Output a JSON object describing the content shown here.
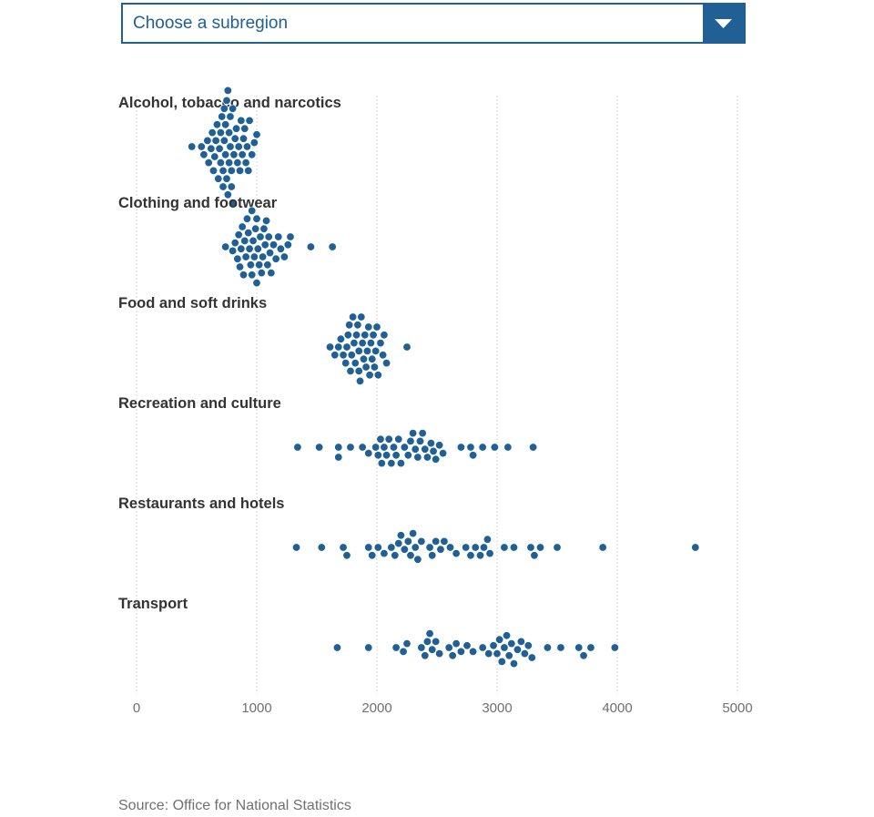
{
  "dropdown": {
    "placeholder": "Choose a subregion",
    "icon": "chevron-down-icon"
  },
  "colors": {
    "accent": "#206095",
    "dot": "#206095",
    "label": "#333333",
    "axis_text": "#707070",
    "grid": "#d9d9d9"
  },
  "source": "Source: Office for National Statistics",
  "chart_data": {
    "type": "scatter",
    "subtype": "beeswarm",
    "title": "",
    "xlabel": "",
    "ylabel": "",
    "xlim": [
      0,
      5000
    ],
    "xticks": [
      0,
      1000,
      2000,
      3000,
      4000,
      5000
    ],
    "grid": "vertical dotted",
    "series": [
      {
        "name": "Alcohol, tobacco and narcotics",
        "values": [
          460,
          540,
          560,
          590,
          600,
          620,
          630,
          640,
          650,
          660,
          670,
          680,
          690,
          700,
          700,
          710,
          720,
          720,
          730,
          730,
          740,
          740,
          750,
          750,
          760,
          760,
          770,
          770,
          780,
          780,
          790,
          790,
          800,
          800,
          810,
          820,
          830,
          840,
          850,
          860,
          870,
          880,
          890,
          900,
          910,
          920,
          930,
          940,
          960,
          980,
          1000
        ]
      },
      {
        "name": "Clothing and footwear",
        "values": [
          740,
          800,
          820,
          840,
          850,
          860,
          870,
          880,
          890,
          900,
          910,
          920,
          930,
          940,
          950,
          960,
          960,
          970,
          980,
          990,
          1000,
          1000,
          1010,
          1020,
          1030,
          1040,
          1050,
          1060,
          1070,
          1080,
          1090,
          1100,
          1110,
          1120,
          1140,
          1160,
          1180,
          1200,
          1230,
          1260,
          1280,
          1450,
          1630
        ]
      },
      {
        "name": "Food and soft drinks",
        "values": [
          1610,
          1650,
          1680,
          1700,
          1720,
          1740,
          1750,
          1760,
          1770,
          1780,
          1790,
          1800,
          1810,
          1820,
          1830,
          1840,
          1850,
          1850,
          1860,
          1870,
          1880,
          1890,
          1900,
          1910,
          1920,
          1930,
          1940,
          1950,
          1960,
          1970,
          1980,
          1990,
          2000,
          2010,
          2030,
          2050,
          2060,
          2080,
          2250
        ]
      },
      {
        "name": "Recreation and culture",
        "values": [
          1340,
          1520,
          1680,
          1680,
          1780,
          1880,
          1930,
          1990,
          2010,
          2030,
          2040,
          2060,
          2080,
          2100,
          2120,
          2140,
          2160,
          2180,
          2200,
          2230,
          2260,
          2280,
          2300,
          2320,
          2340,
          2360,
          2380,
          2400,
          2420,
          2450,
          2470,
          2490,
          2520,
          2550,
          2700,
          2780,
          2800,
          2880,
          2980,
          3090,
          3300
        ]
      },
      {
        "name": "Restaurants and hotels",
        "values": [
          1330,
          1540,
          1720,
          1750,
          1930,
          1960,
          2010,
          2060,
          2120,
          2150,
          2180,
          2200,
          2230,
          2260,
          2280,
          2300,
          2320,
          2340,
          2370,
          2440,
          2460,
          2490,
          2530,
          2560,
          2610,
          2660,
          2740,
          2780,
          2820,
          2860,
          2890,
          2920,
          2940,
          3060,
          3140,
          3280,
          3310,
          3360,
          3500,
          3880,
          4650
        ]
      },
      {
        "name": "Transport",
        "values": [
          1670,
          1930,
          2160,
          2220,
          2250,
          2370,
          2400,
          2420,
          2440,
          2460,
          2490,
          2520,
          2600,
          2630,
          2660,
          2700,
          2750,
          2800,
          2880,
          2930,
          2970,
          3000,
          3020,
          3040,
          3060,
          3080,
          3100,
          3120,
          3140,
          3170,
          3200,
          3230,
          3260,
          3290,
          3420,
          3530,
          3680,
          3720,
          3780,
          3980
        ]
      }
    ]
  }
}
